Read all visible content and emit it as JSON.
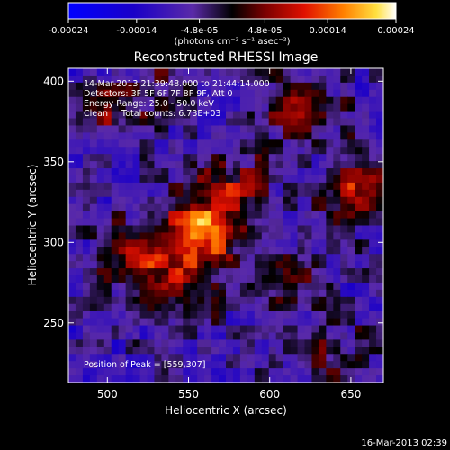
{
  "chart_data": {
    "type": "heatmap",
    "title": "Reconstructed RHESSI Image",
    "xlabel": "Heliocentric X (arcsec)",
    "ylabel": "Heliocentric Y (arcsec)",
    "xlim": [
      476,
      670
    ],
    "ylim": [
      213,
      408
    ],
    "x_ticks": [
      "500",
      "550",
      "600",
      "650"
    ],
    "y_ticks": [
      "250",
      "300",
      "350",
      "400"
    ],
    "colorbar": {
      "ticks": [
        "-0.00024",
        "-0.00014",
        "-4.8e-05",
        "4.8e-05",
        "0.00014",
        "0.00024"
      ],
      "unit_label": "(photons cm⁻² s⁻¹ asec⁻²)",
      "range": [
        -0.00024,
        0.00024
      ]
    },
    "sources": [
      {
        "x": 559,
        "y": 307,
        "value": 0.00024
      },
      {
        "x": 515,
        "y": 290,
        "value": 0.00014
      },
      {
        "x": 545,
        "y": 270,
        "value": 0.00012
      },
      {
        "x": 580,
        "y": 335,
        "value": 0.00011
      },
      {
        "x": 620,
        "y": 385,
        "value": 0.00012
      },
      {
        "x": 655,
        "y": 335,
        "value": 0.00015
      },
      {
        "x": 500,
        "y": 380,
        "value": 9e-05
      },
      {
        "x": 610,
        "y": 275,
        "value": 7e-05
      },
      {
        "x": 640,
        "y": 230,
        "value": 8e-05
      },
      {
        "x": 535,
        "y": 395,
        "value": 6e-05
      }
    ],
    "annotations": {
      "time": "14-Mar-2013 21:39:48.000 to 21:44:14.000",
      "detectors": "Detectors: 3F 5F 6F 7F 8F 9F, Att 0",
      "energy": "Energy Range: 25.0 - 50.0 keV",
      "clean": "Clean     Total counts: 6.73E+03",
      "peak": "Position of Peak = [559,307]"
    },
    "footer_date": "16-Mar-2013 02:39"
  }
}
